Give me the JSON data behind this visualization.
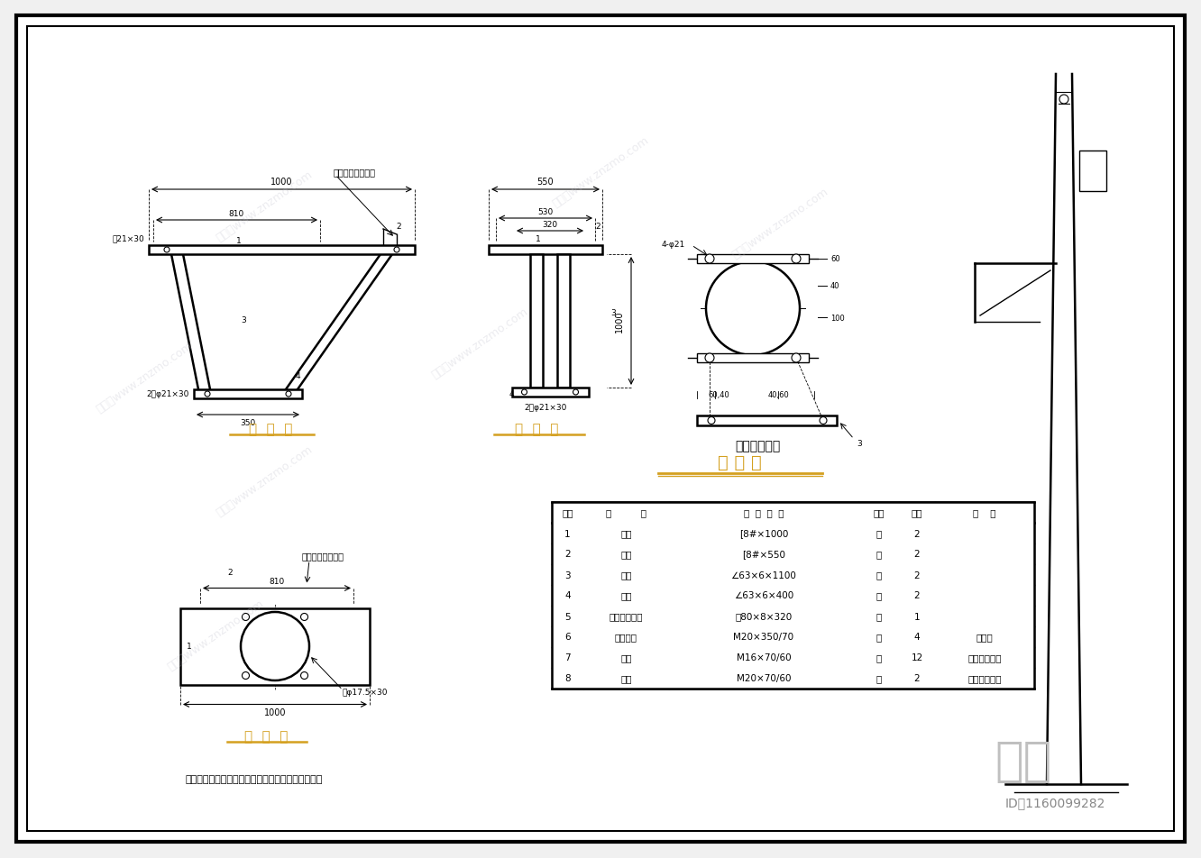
{
  "bg_color": "#ffffff",
  "border_color": "#000000",
  "line_color": "#000000",
  "title_color": "#d4a020",
  "dim_color": "#000000",
  "watermark_color": "#c8c8d0",
  "label_color": "#000000",
  "page_bg": "#f0f0f0",
  "materials_table": {
    "title": "材 料 表",
    "headers": [
      "编号",
      "名          称",
      "规  格  型  号",
      "单位",
      "数量",
      "备    注"
    ],
    "rows": [
      [
        "1",
        "槽钢",
        "[8#×1000",
        "根",
        "2",
        ""
      ],
      [
        "2",
        "槽钢",
        "[8#×550",
        "根",
        "2",
        ""
      ],
      [
        "3",
        "角钢",
        "∠63×6×1100",
        "根",
        "2",
        ""
      ],
      [
        "4",
        "角钢",
        "∠63×6×400",
        "根",
        "2",
        ""
      ],
      [
        "5",
        "横梁加强抱箍",
        "－80×8×320",
        "套",
        "1",
        ""
      ],
      [
        "6",
        "双头螺栓",
        "M20×350/70",
        "套",
        "4",
        "配双帽"
      ],
      [
        "7",
        "螺栓",
        "M16×70/60",
        "套",
        "12",
        "配螺帽、弹垫"
      ],
      [
        "8",
        "螺栓",
        "M20×70/60",
        "套",
        "2",
        "配螺帽、弹垫"
      ]
    ]
  },
  "note": "注：加工件要求热镀锌；焊接要求牢固、焊缝饱满。",
  "view_labels": {
    "front": "立  面  图",
    "side": "侧  面  图",
    "plan": "平  面  图",
    "bracket": "横梁加强抱箍"
  },
  "id_text": "ID：1160099282",
  "brand_text": "知末"
}
